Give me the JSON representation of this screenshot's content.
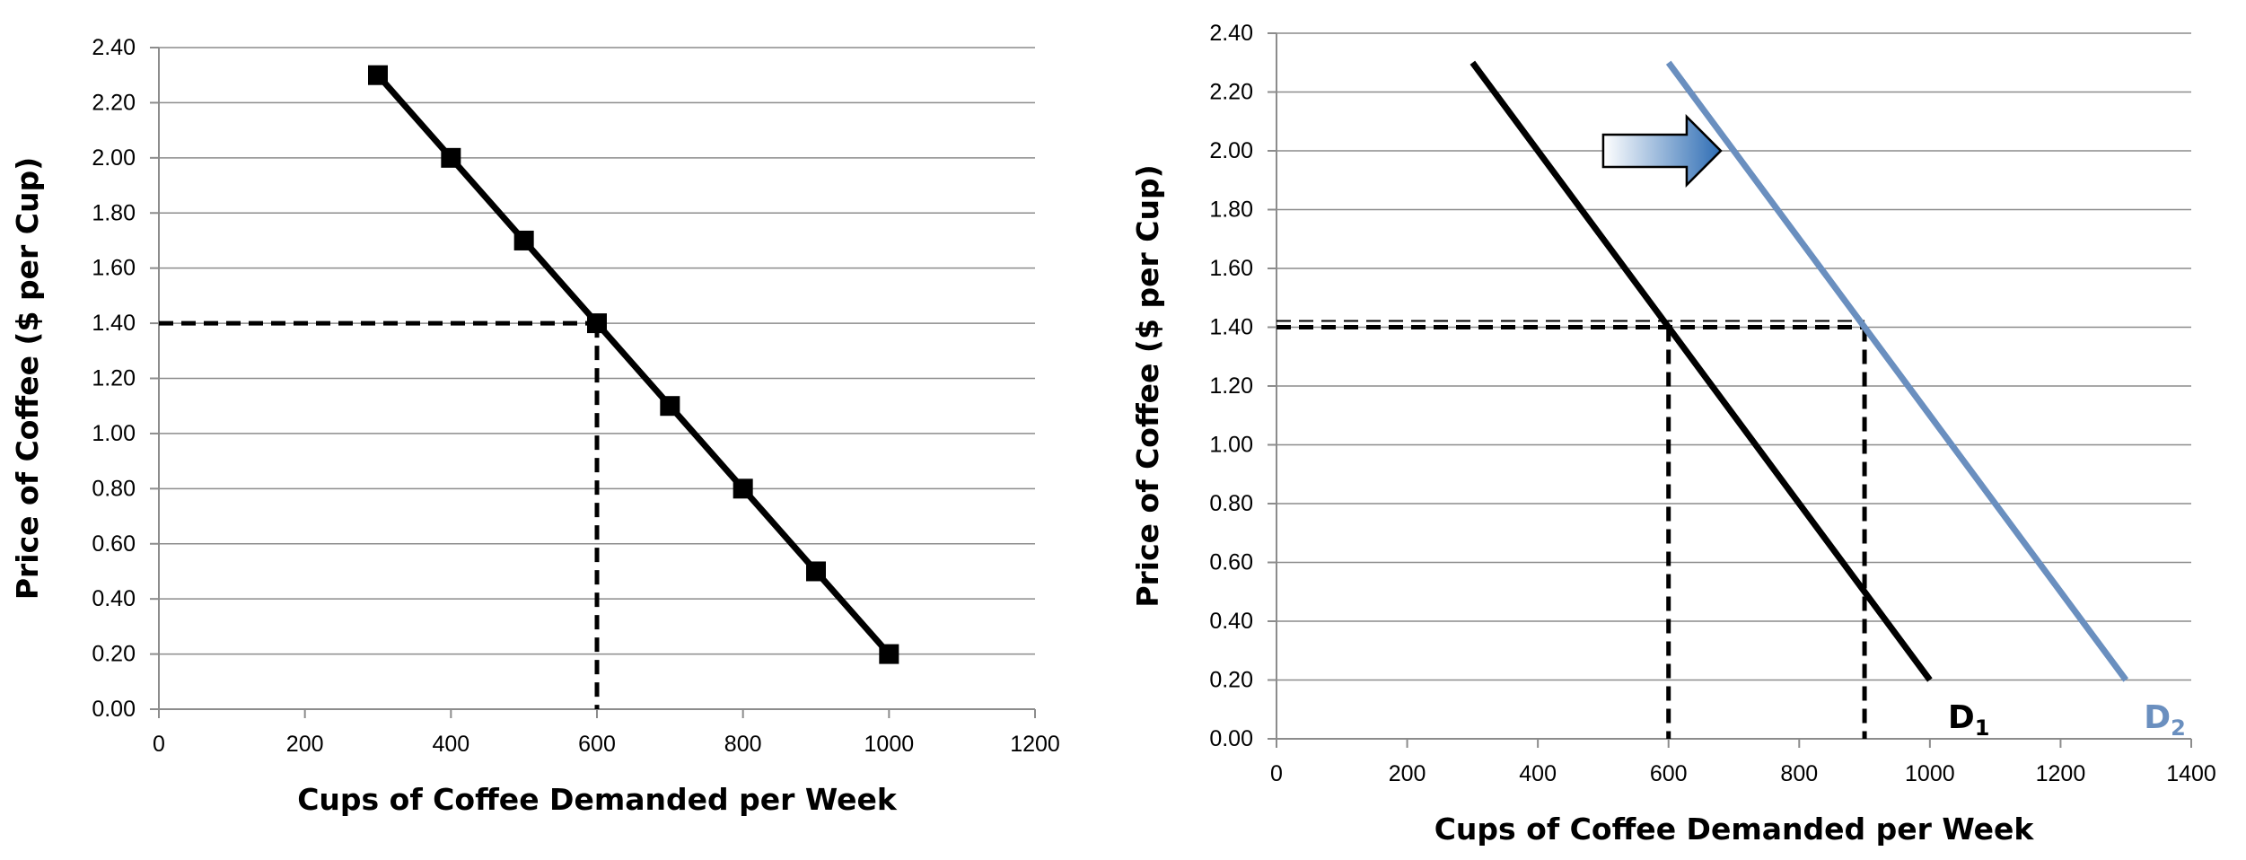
{
  "chart_data": [
    {
      "type": "line",
      "xlabel": "Cups of Coffee Demanded per Week",
      "ylabel": "Price of Coffee ($ per Cup)",
      "xlim": [
        0,
        1200
      ],
      "ylim": [
        0,
        2.4
      ],
      "x_ticks": [
        "0",
        "200",
        "400",
        "600",
        "800",
        "1000",
        "1200"
      ],
      "y_ticks": [
        "0.00",
        "0.20",
        "0.40",
        "0.60",
        "0.80",
        "1.00",
        "1.20",
        "1.40",
        "1.60",
        "1.80",
        "2.00",
        "2.20",
        "2.40"
      ],
      "grid": "horizontal",
      "series": [
        {
          "color": "#000000",
          "marker": "square",
          "x": [
            300,
            400,
            500,
            600,
            700,
            800,
            900,
            1000
          ],
          "y": [
            2.3,
            2.0,
            1.7,
            1.4,
            1.1,
            0.8,
            0.5,
            0.2
          ]
        }
      ],
      "guides": [
        {
          "x": 600,
          "y": 1.4,
          "color": "#000000"
        }
      ]
    },
    {
      "type": "line",
      "xlabel": "Cups of Coffee Demanded per Week",
      "ylabel": "Price of Coffee ($ per Cup)",
      "xlim": [
        0,
        1400
      ],
      "ylim": [
        0,
        2.4
      ],
      "x_ticks": [
        "0",
        "200",
        "400",
        "600",
        "800",
        "1000",
        "1200",
        "1400"
      ],
      "y_ticks": [
        "0.00",
        "0.20",
        "0.40",
        "0.60",
        "0.80",
        "1.00",
        "1.20",
        "1.40",
        "1.60",
        "1.80",
        "2.00",
        "2.20",
        "2.40"
      ],
      "grid": "horizontal",
      "series": [
        {
          "name": "D",
          "subscript": "1",
          "color": "#000000",
          "x": [
            300,
            1000
          ],
          "y": [
            2.3,
            0.2
          ]
        },
        {
          "name": "D",
          "subscript": "2",
          "color": "#6a8fbf",
          "x": [
            600,
            1300
          ],
          "y": [
            2.3,
            0.2
          ]
        }
      ],
      "guides": [
        {
          "x": 600,
          "y": 1.4,
          "color": "#000000"
        },
        {
          "x": 900,
          "y": 1.4,
          "color": "#000000"
        }
      ],
      "annotation": {
        "type": "arrow",
        "direction": "right",
        "color": "#2e6db4"
      }
    }
  ]
}
